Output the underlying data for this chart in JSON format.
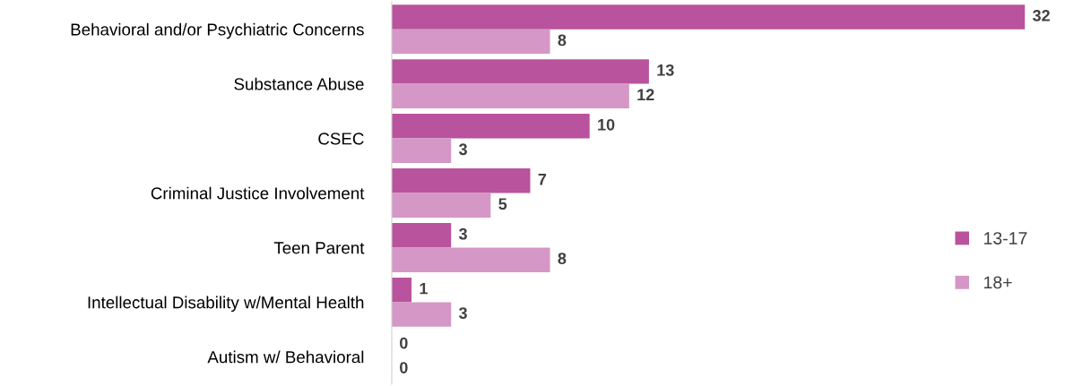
{
  "chart_data": {
    "type": "bar",
    "orientation": "horizontal",
    "categories": [
      "Behavioral and/or Psychiatric Concerns",
      "Substance Abuse",
      "CSEC",
      "Criminal Justice Involvement",
      "Teen Parent",
      "Intellectual Disability w/Mental Health",
      "Autism w/ Behavioral"
    ],
    "series": [
      {
        "name": "13-17",
        "color": "#b9539d",
        "values": [
          32,
          13,
          10,
          7,
          3,
          1,
          0
        ]
      },
      {
        "name": "18+",
        "color": "#d597c6",
        "values": [
          8,
          12,
          3,
          5,
          8,
          3,
          0
        ]
      }
    ],
    "data_labels": true,
    "legend": "right",
    "grid": false
  }
}
